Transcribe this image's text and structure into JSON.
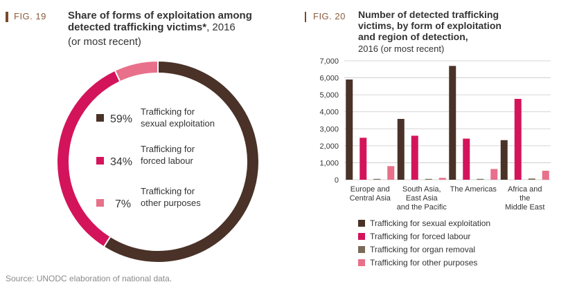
{
  "fig19": {
    "label": "FIG. 19",
    "title_line1": "Share of forms of exploitation among",
    "title_line2_bold": "detected trafficking victims*",
    "title_line2_rest": ", 2016",
    "subtitle": "(or most recent)"
  },
  "fig20": {
    "label": "FIG. 20",
    "title_line1": "Number of detected trafficking",
    "title_line2": "victims, by form of exploitation",
    "title_line3": "and region of detection,",
    "subtitle": "2016 (or most recent)"
  },
  "source": "Source: UNODC elaboration of national data.",
  "colors": {
    "sexual": "#4a3228",
    "forced": "#d4145a",
    "organ": "#7a6a58",
    "other": "#e8708a"
  },
  "chart_data": [
    {
      "type": "pie",
      "donut": true,
      "slices": [
        {
          "pct_label": "59%",
          "value": 59,
          "label_line1": "Trafficking for",
          "label_line2": "sexual exploitation",
          "color": "#4a3228"
        },
        {
          "pct_label": "34%",
          "value": 34,
          "label_line1": "Trafficking for",
          "label_line2": "forced labour",
          "color": "#d4145a"
        },
        {
          "pct_label": "7%",
          "value": 7,
          "label_line1": "Trafficking for",
          "label_line2": "other purposes",
          "color": "#e8708a"
        }
      ]
    },
    {
      "type": "bar",
      "categories": [
        [
          "Europe and",
          "Central Asia"
        ],
        [
          "South Asia,",
          "East Asia",
          "and the Pacific"
        ],
        [
          "The Americas"
        ],
        [
          "Africa and",
          "the",
          "Middle East"
        ]
      ],
      "ylim": [
        0,
        7000
      ],
      "yticks": [
        "0",
        "1,000",
        "2,000",
        "3,000",
        "4,000",
        "5,000",
        "6,000",
        "7,000"
      ],
      "grid": true,
      "legend_position": "bottom",
      "series": [
        {
          "name": "Trafficking for sexual exploitation",
          "color": "#4a3228",
          "values": [
            5900,
            3580,
            6700,
            2330
          ]
        },
        {
          "name": "Trafficking for forced labour",
          "color": "#d4145a",
          "values": [
            2470,
            2590,
            2420,
            4760
          ]
        },
        {
          "name": "Trafficking for organ removal",
          "color": "#7a6a58",
          "values": [
            20,
            40,
            10,
            70
          ]
        },
        {
          "name": "Trafficking for other purposes",
          "color": "#e8708a",
          "values": [
            800,
            110,
            630,
            530
          ]
        }
      ]
    }
  ]
}
